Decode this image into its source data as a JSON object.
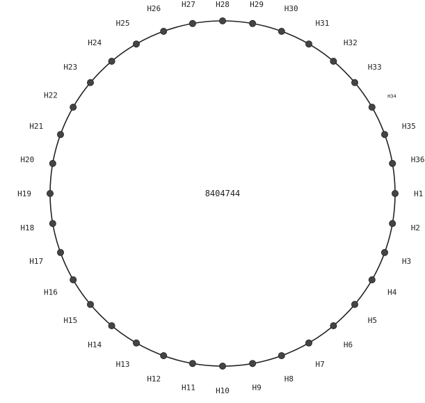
{
  "diagram": {
    "center_label": "8404744",
    "colors": {
      "ring": "#222222",
      "node": "#444444",
      "text": "#222222"
    },
    "nodes": [
      {
        "label": "H1"
      },
      {
        "label": "H2"
      },
      {
        "label": "H3"
      },
      {
        "label": "H4"
      },
      {
        "label": "H5"
      },
      {
        "label": "H6"
      },
      {
        "label": "H7"
      },
      {
        "label": "H8"
      },
      {
        "label": "H9"
      },
      {
        "label": "H10"
      },
      {
        "label": "H11"
      },
      {
        "label": "H12"
      },
      {
        "label": "H13"
      },
      {
        "label": "H14"
      },
      {
        "label": "H15"
      },
      {
        "label": "H16"
      },
      {
        "label": "H17"
      },
      {
        "label": "H18"
      },
      {
        "label": "H19"
      },
      {
        "label": "H20"
      },
      {
        "label": "H21"
      },
      {
        "label": "H22"
      },
      {
        "label": "H23"
      },
      {
        "label": "H24"
      },
      {
        "label": "H25"
      },
      {
        "label": "H26"
      },
      {
        "label": "H27"
      },
      {
        "label": "H28"
      },
      {
        "label": "H29"
      },
      {
        "label": "H30"
      },
      {
        "label": "H31"
      },
      {
        "label": "H32"
      },
      {
        "label": "H33"
      },
      {
        "label": "H34"
      },
      {
        "label": "H35"
      },
      {
        "label": "H36"
      }
    ]
  }
}
